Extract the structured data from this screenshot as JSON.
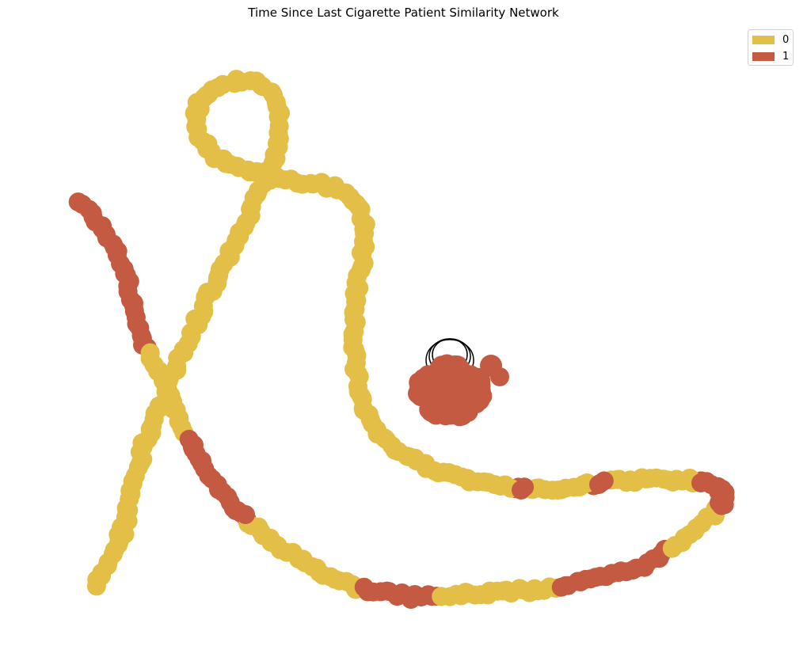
{
  "title": "Time Since Last Cigarette Patient Similarity Network",
  "colors": {
    "class_0": "#e3bf47",
    "class_1": "#c55a43",
    "edge": "#000000"
  },
  "legend": [
    {
      "label": "0",
      "color_key": "class_0"
    },
    {
      "label": "1",
      "color_key": "class_1"
    }
  ],
  "network": {
    "description_classes": [
      "0",
      "1"
    ]
  }
}
